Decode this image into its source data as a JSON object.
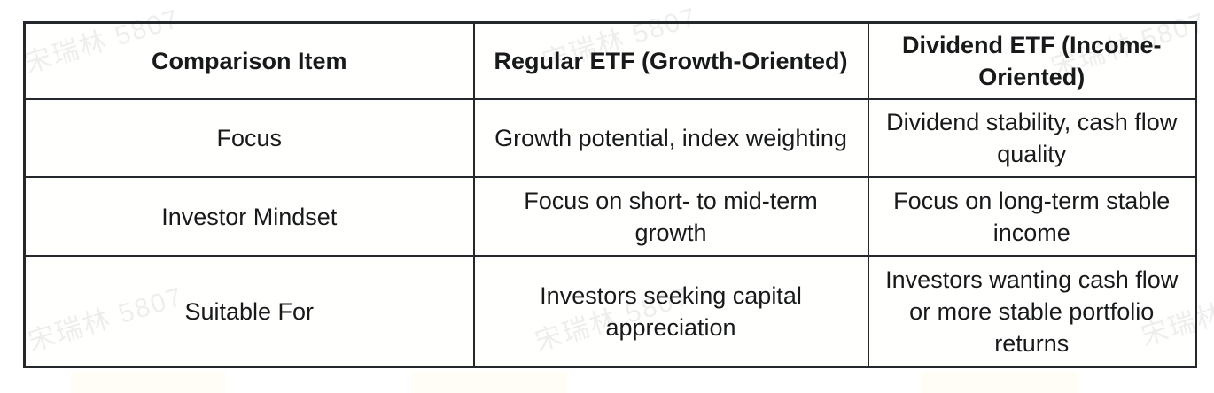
{
  "table": {
    "headers": [
      "Comparison Item",
      "Regular ETF (Growth-Oriented)",
      "Dividend ETF (Income-Oriented)"
    ],
    "rows": [
      [
        "Focus",
        "Growth potential, index weighting",
        "Dividend stability, cash flow quality"
      ],
      [
        "Investor Mindset",
        "Focus on short- to mid-term growth",
        "Focus on long-term stable income"
      ],
      [
        "Suitable For",
        "Investors seeking capital appreciation",
        "Investors wanting cash flow or more stable portfolio returns"
      ]
    ]
  },
  "watermark": {
    "text": "宋瑞林 5807"
  },
  "colors": {
    "border": "#24272b",
    "text": "#17191b",
    "cell_background": "#fffffd",
    "page_background": "#ffffff",
    "watermark": "rgba(40,40,35,0.08)"
  }
}
